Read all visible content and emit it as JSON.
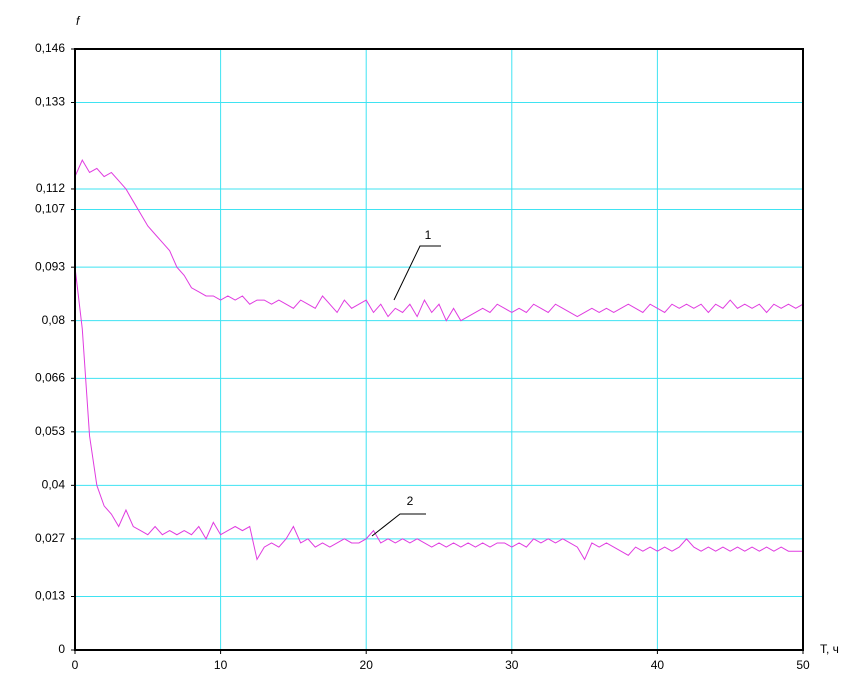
{
  "chart_data": {
    "type": "line",
    "y_label": "f",
    "x_label": "T, ч",
    "x": [
      0,
      0.5,
      1,
      1.5,
      2,
      2.5,
      3,
      3.5,
      4,
      4.5,
      5,
      5.5,
      6,
      6.5,
      7,
      7.5,
      8,
      8.5,
      9,
      9.5,
      10,
      10.5,
      11,
      11.5,
      12,
      12.5,
      13,
      13.5,
      14,
      14.5,
      15,
      15.5,
      16,
      16.5,
      17,
      17.5,
      18,
      18.5,
      19,
      19.5,
      20,
      20.5,
      21,
      21.5,
      22,
      22.5,
      23,
      23.5,
      24,
      24.5,
      25,
      25.5,
      26,
      26.5,
      27,
      27.5,
      28,
      28.5,
      29,
      29.5,
      30,
      30.5,
      31,
      31.5,
      32,
      32.5,
      33,
      33.5,
      34,
      34.5,
      35,
      35.5,
      36,
      36.5,
      37,
      37.5,
      38,
      38.5,
      39,
      39.5,
      40,
      40.5,
      41,
      41.5,
      42,
      42.5,
      43,
      43.5,
      44,
      44.5,
      45,
      45.5,
      46,
      46.5,
      47,
      47.5,
      48,
      48.5,
      49,
      49.5,
      50
    ],
    "series": [
      {
        "name": "1",
        "color": "#e03ce0",
        "values": [
          0.115,
          0.119,
          0.116,
          0.117,
          0.115,
          0.116,
          0.114,
          0.112,
          0.109,
          0.106,
          0.103,
          0.101,
          0.099,
          0.097,
          0.093,
          0.091,
          0.088,
          0.087,
          0.086,
          0.086,
          0.085,
          0.086,
          0.085,
          0.086,
          0.084,
          0.085,
          0.085,
          0.084,
          0.085,
          0.084,
          0.083,
          0.085,
          0.084,
          0.083,
          0.086,
          0.084,
          0.082,
          0.085,
          0.083,
          0.084,
          0.085,
          0.082,
          0.084,
          0.081,
          0.083,
          0.082,
          0.084,
          0.081,
          0.085,
          0.082,
          0.084,
          0.08,
          0.083,
          0.08,
          0.081,
          0.082,
          0.083,
          0.082,
          0.084,
          0.083,
          0.082,
          0.083,
          0.082,
          0.084,
          0.083,
          0.082,
          0.084,
          0.083,
          0.082,
          0.081,
          0.082,
          0.083,
          0.082,
          0.083,
          0.082,
          0.083,
          0.084,
          0.083,
          0.082,
          0.084,
          0.083,
          0.082,
          0.084,
          0.083,
          0.084,
          0.083,
          0.084,
          0.082,
          0.084,
          0.083,
          0.085,
          0.083,
          0.084,
          0.083,
          0.084,
          0.082,
          0.084,
          0.083,
          0.084,
          0.083,
          0.084
        ]
      },
      {
        "name": "2",
        "color": "#e03ce0",
        "values": [
          0.093,
          0.078,
          0.052,
          0.04,
          0.035,
          0.033,
          0.03,
          0.034,
          0.03,
          0.029,
          0.028,
          0.03,
          0.028,
          0.029,
          0.028,
          0.029,
          0.028,
          0.03,
          0.027,
          0.031,
          0.028,
          0.029,
          0.03,
          0.029,
          0.03,
          0.022,
          0.025,
          0.026,
          0.025,
          0.027,
          0.03,
          0.026,
          0.027,
          0.025,
          0.026,
          0.025,
          0.026,
          0.027,
          0.026,
          0.026,
          0.027,
          0.029,
          0.026,
          0.027,
          0.026,
          0.027,
          0.026,
          0.027,
          0.026,
          0.025,
          0.026,
          0.025,
          0.026,
          0.025,
          0.026,
          0.025,
          0.026,
          0.025,
          0.026,
          0.026,
          0.025,
          0.026,
          0.025,
          0.027,
          0.026,
          0.027,
          0.026,
          0.027,
          0.026,
          0.025,
          0.022,
          0.026,
          0.025,
          0.026,
          0.025,
          0.024,
          0.023,
          0.025,
          0.024,
          0.025,
          0.024,
          0.025,
          0.024,
          0.025,
          0.027,
          0.025,
          0.024,
          0.025,
          0.024,
          0.025,
          0.024,
          0.025,
          0.024,
          0.025,
          0.024,
          0.025,
          0.024,
          0.025,
          0.024,
          0.024,
          0.024
        ]
      }
    ],
    "xlim": [
      0,
      50
    ],
    "xticks": [
      0,
      10,
      20,
      30,
      40,
      50
    ],
    "ylim": [
      0,
      0.146
    ],
    "yticks": [
      0,
      {
        "value": 0.013,
        "label": "0,013"
      },
      {
        "value": 0.027,
        "label": "0,027"
      },
      {
        "value": 0.04,
        "label": "0,04"
      },
      {
        "value": 0.053,
        "label": "0,053"
      },
      {
        "value": 0.066,
        "label": "0,066"
      },
      {
        "value": 0.08,
        "label": "0,08"
      },
      {
        "value": 0.093,
        "label": "0,093"
      },
      {
        "value": 0.107,
        "label": "0,107"
      },
      {
        "value": 0.112,
        "label": "0,112"
      },
      {
        "value": 0.133,
        "label": "0,133"
      },
      {
        "value": 0.146,
        "label": "0,146"
      }
    ],
    "grid": true
  }
}
